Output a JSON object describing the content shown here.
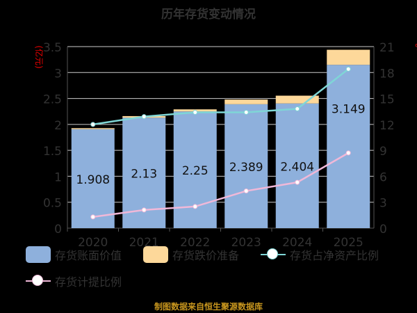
{
  "chart_data": {
    "type": "bar",
    "title": "历年存货变动情况",
    "categories": [
      "2020",
      "2021",
      "2022",
      "2023",
      "2024",
      "2025"
    ],
    "ylabel": "(亿元)",
    "y2label": "%",
    "ylim": [
      0,
      3.5
    ],
    "y2lim": [
      0,
      21
    ],
    "yticks": [
      "0",
      "0.5",
      "1",
      "1.5",
      "2",
      "2.5",
      "3",
      "3.5"
    ],
    "y2ticks": [
      "0",
      "3",
      "6",
      "9",
      "12",
      "15",
      "18",
      "21"
    ],
    "series": [
      {
        "name": "存货账面价值",
        "type": "bar",
        "stack": "a",
        "color": "#8eb0dc",
        "values": [
          1.908,
          2.13,
          2.25,
          2.389,
          2.404,
          3.149
        ],
        "labels": [
          "1.908",
          "2.13",
          "2.25",
          "2.389",
          "2.404",
          "3.149"
        ]
      },
      {
        "name": "存货跌价准备",
        "type": "bar",
        "stack": "a",
        "color": "#fdd89a",
        "values": [
          0.02,
          0.03,
          0.04,
          0.09,
          0.15,
          0.29
        ]
      },
      {
        "name": "存货占净资产比例",
        "type": "line",
        "axis": "right",
        "color": "#7fd6d6",
        "values": [
          12.0,
          12.9,
          13.4,
          13.4,
          13.8,
          18.4
        ]
      },
      {
        "name": "存货计提比例",
        "type": "line",
        "axis": "right",
        "color": "#f0b8d8",
        "values": [
          1.3,
          2.1,
          2.5,
          4.3,
          5.3,
          8.7
        ]
      }
    ],
    "legend_position": "bottom",
    "grid": true
  },
  "source": "制图数据来自恒生聚源数据库"
}
